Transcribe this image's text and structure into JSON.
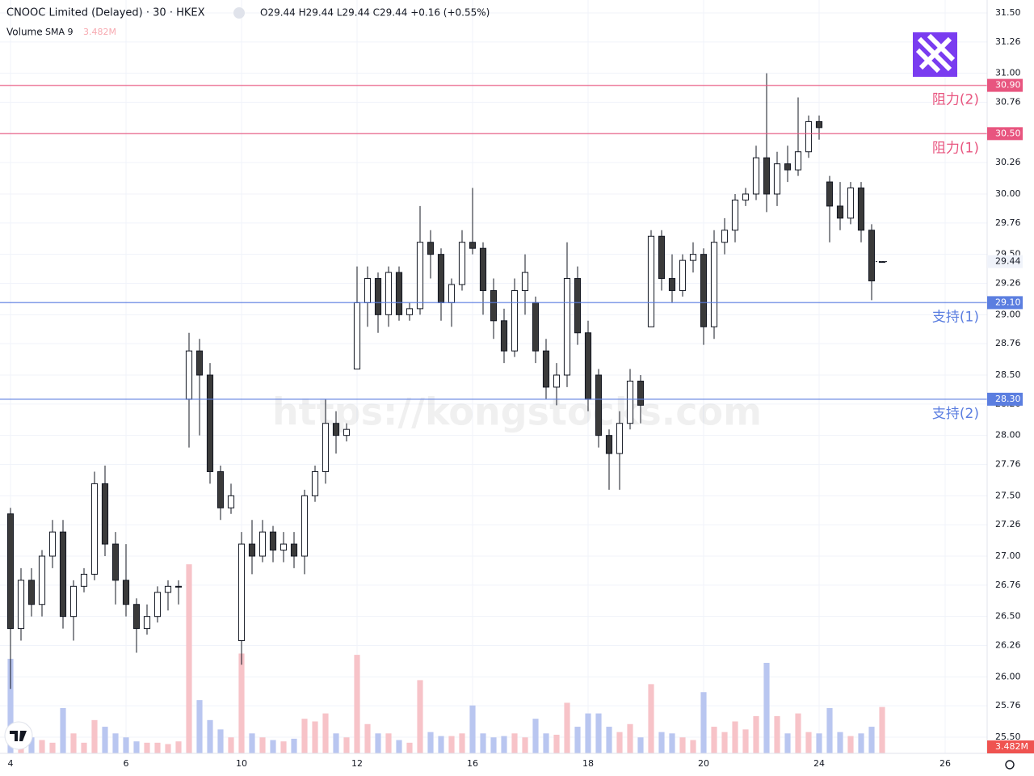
{
  "chart_data": {
    "type": "candlestick",
    "title": "CNOOC Limited (Delayed) · 30 · HKEX",
    "ohlc_text": "O29.44 H29.44 L29.44 C29.44 +0.16 (+0.55%)",
    "volume_title": "Volume",
    "volume_study": "SMA 9",
    "volume_value_label": "3.482M",
    "watermark": "https://kongstocks.com",
    "x": [
      0,
      1,
      2,
      3,
      4,
      5,
      6,
      7,
      8,
      9,
      10,
      11,
      12,
      13,
      14,
      15,
      16,
      17,
      18,
      19,
      20,
      21,
      22,
      23,
      24,
      25,
      26,
      27,
      28,
      29,
      30,
      31,
      32,
      33,
      34,
      35,
      36,
      37,
      38,
      39,
      40,
      41,
      42,
      43,
      44,
      45,
      46,
      47,
      48,
      49,
      50,
      51,
      52,
      53,
      54,
      55,
      56,
      57,
      58,
      59,
      60,
      61,
      62,
      63,
      64,
      65,
      66,
      67,
      68,
      69,
      70,
      71,
      72,
      73,
      74,
      75,
      76,
      77,
      78,
      79,
      80,
      81,
      82,
      83
    ],
    "open": [
      27.35,
      26.4,
      26.8,
      26.6,
      27.0,
      27.2,
      26.5,
      26.75,
      26.85,
      27.6,
      27.1,
      26.8,
      26.6,
      26.4,
      26.5,
      26.7,
      26.75,
      28.3,
      28.7,
      28.5,
      27.7,
      27.4,
      26.3,
      27.1,
      27.0,
      27.2,
      27.05,
      27.1,
      27.0,
      27.5,
      27.7,
      28.1,
      28.0,
      28.55,
      29.1,
      29.3,
      29.0,
      29.35,
      29.0,
      29.05,
      29.6,
      29.5,
      29.1,
      29.25,
      29.6,
      29.55,
      29.2,
      28.95,
      28.7,
      29.2,
      29.1,
      28.7,
      28.4,
      28.5,
      29.3,
      28.85,
      28.5,
      28.0,
      27.85,
      28.1,
      28.45,
      28.9,
      29.65,
      29.3,
      29.2,
      29.45,
      29.5,
      28.9,
      29.6,
      29.7,
      29.95,
      30.0,
      30.3,
      30.0,
      30.25,
      30.2,
      30.35,
      30.6,
      30.1,
      29.9,
      29.8,
      30.05,
      29.7,
      29.44
    ],
    "high": [
      27.4,
      26.9,
      26.9,
      27.05,
      27.3,
      27.3,
      26.8,
      26.9,
      27.7,
      27.75,
      27.2,
      27.1,
      26.65,
      26.6,
      26.75,
      26.8,
      26.8,
      28.85,
      28.8,
      28.6,
      27.75,
      27.6,
      27.2,
      27.3,
      27.3,
      27.25,
      27.2,
      27.2,
      27.55,
      27.75,
      28.3,
      28.2,
      28.1,
      29.4,
      29.4,
      29.35,
      29.4,
      29.4,
      29.1,
      29.9,
      29.7,
      29.55,
      29.3,
      29.7,
      30.05,
      29.6,
      29.3,
      29.05,
      29.3,
      29.5,
      29.15,
      28.8,
      28.6,
      29.6,
      29.4,
      28.95,
      28.55,
      28.05,
      28.2,
      28.55,
      28.5,
      29.7,
      29.7,
      29.5,
      29.5,
      29.6,
      29.55,
      29.7,
      29.8,
      30.0,
      30.05,
      30.4,
      31.0,
      30.35,
      30.4,
      30.8,
      30.65,
      30.65,
      30.15,
      30.1,
      30.1,
      30.1,
      29.75,
      29.44
    ],
    "low": [
      25.9,
      26.3,
      26.5,
      26.5,
      26.9,
      26.4,
      26.3,
      26.7,
      26.8,
      27.0,
      26.6,
      26.5,
      26.2,
      26.35,
      26.45,
      26.55,
      26.6,
      27.9,
      28.0,
      27.6,
      27.3,
      27.35,
      26.1,
      26.85,
      26.95,
      26.95,
      26.95,
      26.9,
      26.85,
      27.45,
      27.6,
      27.85,
      27.95,
      28.55,
      28.9,
      28.85,
      28.9,
      28.95,
      28.95,
      29.0,
      29.3,
      28.95,
      28.9,
      29.2,
      29.5,
      29.0,
      28.8,
      28.6,
      28.65,
      29.0,
      28.6,
      28.3,
      28.25,
      28.4,
      28.75,
      28.2,
      27.9,
      27.55,
      27.55,
      28.05,
      28.1,
      28.9,
      29.2,
      29.1,
      29.15,
      29.35,
      28.75,
      28.8,
      29.5,
      29.6,
      29.9,
      29.95,
      29.85,
      29.9,
      30.1,
      30.15,
      30.3,
      30.45,
      29.6,
      29.7,
      29.75,
      29.6,
      29.12,
      29.44
    ],
    "close": [
      26.4,
      26.8,
      26.6,
      27.0,
      27.2,
      26.5,
      26.75,
      26.85,
      27.6,
      27.1,
      26.8,
      26.6,
      26.4,
      26.5,
      26.7,
      26.75,
      26.75,
      28.7,
      28.5,
      27.7,
      27.4,
      27.5,
      27.1,
      27.0,
      27.2,
      27.05,
      27.1,
      27.0,
      27.5,
      27.7,
      28.1,
      28.0,
      28.05,
      29.1,
      29.3,
      29.0,
      29.35,
      29.0,
      29.05,
      29.6,
      29.5,
      29.1,
      29.25,
      29.6,
      29.55,
      29.2,
      28.95,
      28.7,
      29.2,
      29.35,
      28.7,
      28.4,
      28.5,
      29.3,
      28.85,
      28.3,
      28.0,
      27.85,
      28.1,
      28.45,
      28.25,
      29.65,
      29.3,
      29.2,
      29.45,
      29.5,
      28.9,
      29.6,
      29.7,
      29.95,
      30.0,
      30.3,
      30.0,
      30.25,
      30.2,
      30.35,
      30.6,
      30.55,
      29.9,
      29.8,
      30.05,
      29.7,
      29.28,
      29.44
    ],
    "volume": [
      7.1,
      1.5,
      1.2,
      1.0,
      0.8,
      3.4,
      1.5,
      0.8,
      2.5,
      2.0,
      1.5,
      1.2,
      0.9,
      0.8,
      0.8,
      0.7,
      0.9,
      14.2,
      4.0,
      2.5,
      1.8,
      1.2,
      7.5,
      1.5,
      1.2,
      1.0,
      0.9,
      1.1,
      2.6,
      2.4,
      3.0,
      1.5,
      1.2,
      7.4,
      2.2,
      1.5,
      1.5,
      1.0,
      0.8,
      5.5,
      1.6,
      1.3,
      1.3,
      1.5,
      3.6,
      1.5,
      1.2,
      1.3,
      1.5,
      1.2,
      2.6,
      1.5,
      1.4,
      3.8,
      2.0,
      3.0,
      3.0,
      2.0,
      1.6,
      2.2,
      1.2,
      5.2,
      1.6,
      1.5,
      1.2,
      1.0,
      4.6,
      2.0,
      1.6,
      2.4,
      1.8,
      2.8,
      6.8,
      2.8,
      1.5,
      3.0,
      1.6,
      1.5,
      3.4,
      1.6,
      1.3,
      1.5,
      2.0,
      3.482
    ],
    "up_color": "#ffffff",
    "down_color": "#3a3a3a",
    "volume_up_color": "#f7c3c8",
    "volume_down_color": "#b9c6f0",
    "xlim": [
      -1,
      93
    ],
    "xticks": [
      {
        "value": 0,
        "label": "4"
      },
      {
        "value": 11,
        "label": "6"
      },
      {
        "value": 22,
        "label": "10"
      },
      {
        "value": 33,
        "label": "12"
      },
      {
        "value": 44,
        "label": "16"
      },
      {
        "value": 55,
        "label": "18"
      },
      {
        "value": 66,
        "label": "20"
      },
      {
        "value": 77,
        "label": "24"
      },
      {
        "value": 89,
        "label": "26"
      }
    ],
    "ylim": [
      25.5,
      31.5
    ],
    "yticks": [
      {
        "value": 31.5,
        "label": "31.50"
      },
      {
        "value": 31.26,
        "label": "31.26"
      },
      {
        "value": 31.0,
        "label": "31.00"
      },
      {
        "value": 30.76,
        "label": "30.76"
      },
      {
        "value": 30.5,
        "label": "30.50"
      },
      {
        "value": 30.26,
        "label": "30.26"
      },
      {
        "value": 30.0,
        "label": "30.00"
      },
      {
        "value": 29.76,
        "label": "29.76"
      },
      {
        "value": 29.5,
        "label": "29.50"
      },
      {
        "value": 29.26,
        "label": "29.26"
      },
      {
        "value": 29.0,
        "label": "29.00"
      },
      {
        "value": 28.76,
        "label": "28.76"
      },
      {
        "value": 28.5,
        "label": "28.50"
      },
      {
        "value": 28.26,
        "label": "28.26"
      },
      {
        "value": 28.0,
        "label": "28.00"
      },
      {
        "value": 27.76,
        "label": "27.76"
      },
      {
        "value": 27.5,
        "label": "27.50"
      },
      {
        "value": 27.26,
        "label": "27.26"
      },
      {
        "value": 27.0,
        "label": "27.00"
      },
      {
        "value": 26.76,
        "label": "26.76"
      },
      {
        "value": 26.5,
        "label": "26.50"
      },
      {
        "value": 26.26,
        "label": "26.26"
      },
      {
        "value": 26.0,
        "label": "26.00"
      },
      {
        "value": 25.76,
        "label": "25.76"
      },
      {
        "value": 25.5,
        "label": "25.50"
      }
    ],
    "vlim": [
      0,
      17
    ],
    "grid": true,
    "grid_color": "#f0f3fa",
    "last_price": {
      "value": 29.44,
      "label": "29.44"
    },
    "levels": [
      {
        "value": 30.9,
        "label": "30.90",
        "name": "阻力(2)",
        "color": "#e8557f"
      },
      {
        "value": 30.5,
        "label": "30.50",
        "name": "阻力(1)",
        "color": "#e8557f"
      },
      {
        "value": 29.1,
        "label": "29.10",
        "name": "支持(1)",
        "color": "#5b7ee0"
      },
      {
        "value": 28.3,
        "label": "28.30",
        "name": "支持(2)",
        "color": "#5b7ee0"
      }
    ]
  }
}
